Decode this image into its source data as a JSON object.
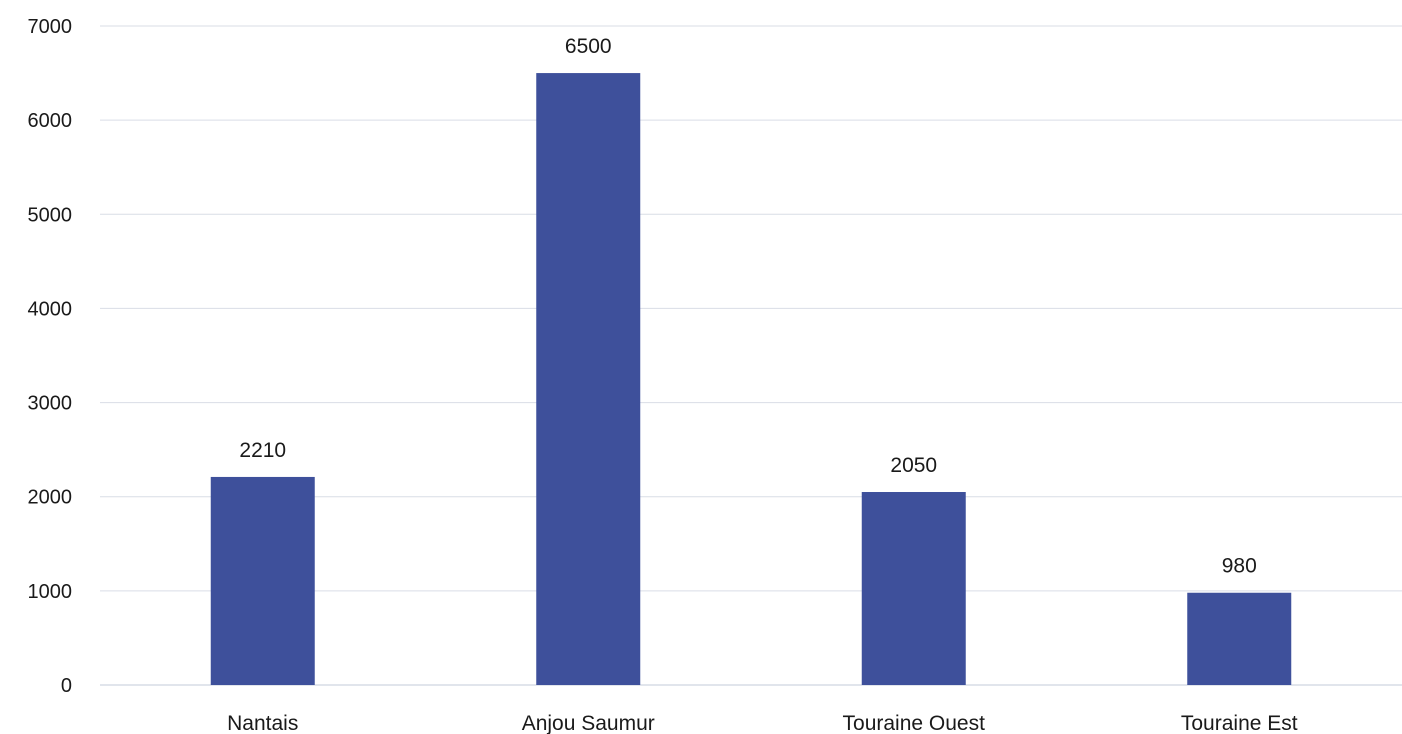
{
  "chart_data": {
    "type": "bar",
    "categories": [
      "Nantais",
      "Anjou Saumur",
      "Touraine Ouest",
      "Touraine Est"
    ],
    "values": [
      2210,
      6500,
      2050,
      980
    ],
    "data_labels": [
      "2210",
      "6500",
      "2050",
      "980"
    ],
    "yticks": [
      0,
      1000,
      2000,
      3000,
      4000,
      5000,
      6000,
      7000
    ],
    "ylim": [
      0,
      7000
    ],
    "grid": true,
    "bar_color": "#3e509b",
    "title": "",
    "xlabel": "",
    "ylabel": ""
  }
}
